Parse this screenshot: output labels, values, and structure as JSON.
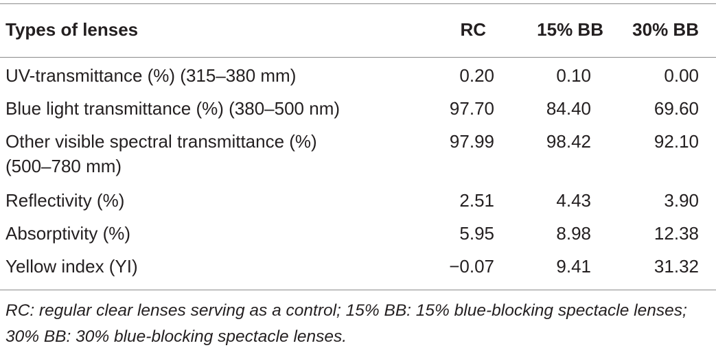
{
  "table": {
    "headers": [
      "Types of lenses",
      "RC",
      "15% BB",
      "30% BB"
    ],
    "rows": [
      {
        "label": "UV-transmittance (%) (315–380 mm)",
        "label2": "",
        "rc": "0.20",
        "bb15": "0.10",
        "bb30": "0.00"
      },
      {
        "label": "Blue light transmittance (%) (380–500 nm)",
        "label2": "",
        "rc": "97.70",
        "bb15": "84.40",
        "bb30": "69.60"
      },
      {
        "label": "Other visible spectral transmittance (%)",
        "label2": "(500–780 mm)",
        "rc": "97.99",
        "bb15": "98.42",
        "bb30": "92.10"
      },
      {
        "label": "Reflectivity (%)",
        "label2": "",
        "rc": "2.51",
        "bb15": "4.43",
        "bb30": "3.90"
      },
      {
        "label": "Absorptivity (%)",
        "label2": "",
        "rc": "5.95",
        "bb15": "8.98",
        "bb30": "12.38"
      },
      {
        "label": "Yellow index (YI)",
        "label2": "",
        "rc": "−0.07",
        "bb15": "9.41",
        "bb30": "31.32"
      }
    ],
    "footnote": "RC: regular clear lenses serving as a control; 15% BB: 15% blue-blocking spectacle lenses; 30% BB: 30% blue-blocking spectacle lenses."
  }
}
